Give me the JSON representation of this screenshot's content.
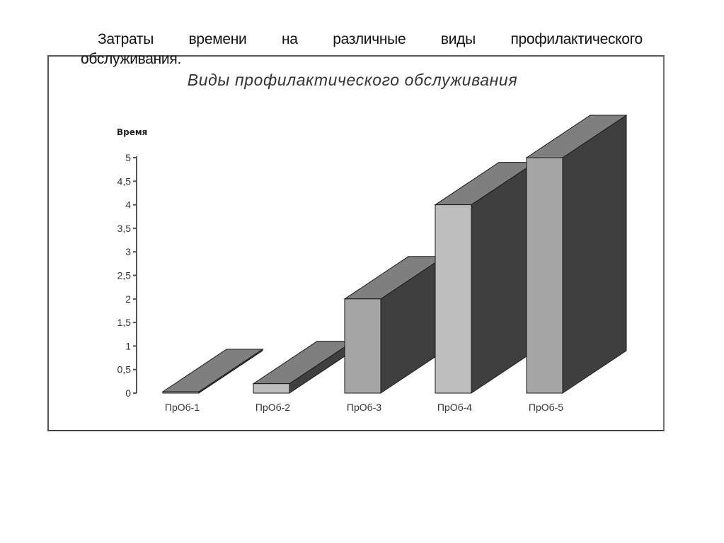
{
  "caption": {
    "words": [
      "Затраты",
      "времени",
      "на",
      "различные",
      "виды",
      "профилактического"
    ],
    "line2": "обслуживания."
  },
  "chart_data": {
    "type": "bar",
    "style": "3d-column",
    "title": "Виды профилактического обслуживания",
    "xlabel": "",
    "ylabel": "Время",
    "categories": [
      "ПрОб-1",
      "ПрОб-2",
      "ПрОб-3",
      "ПрОб-4",
      "ПрОб-5"
    ],
    "values": [
      0,
      0.2,
      2,
      4,
      5
    ],
    "ylim": [
      0,
      5
    ],
    "yticks": [
      "0",
      "0,5",
      "1",
      "1,5",
      "2",
      "2,5",
      "3",
      "3,5",
      "4",
      "4,5",
      "5"
    ],
    "grid": false,
    "legend": null,
    "colors": {
      "front": "#a6a6a6",
      "front_alt": "#bdbdbd",
      "top": "#7f7f7f",
      "side": "#3f3f3f",
      "outline": "#1a1a1a"
    }
  }
}
